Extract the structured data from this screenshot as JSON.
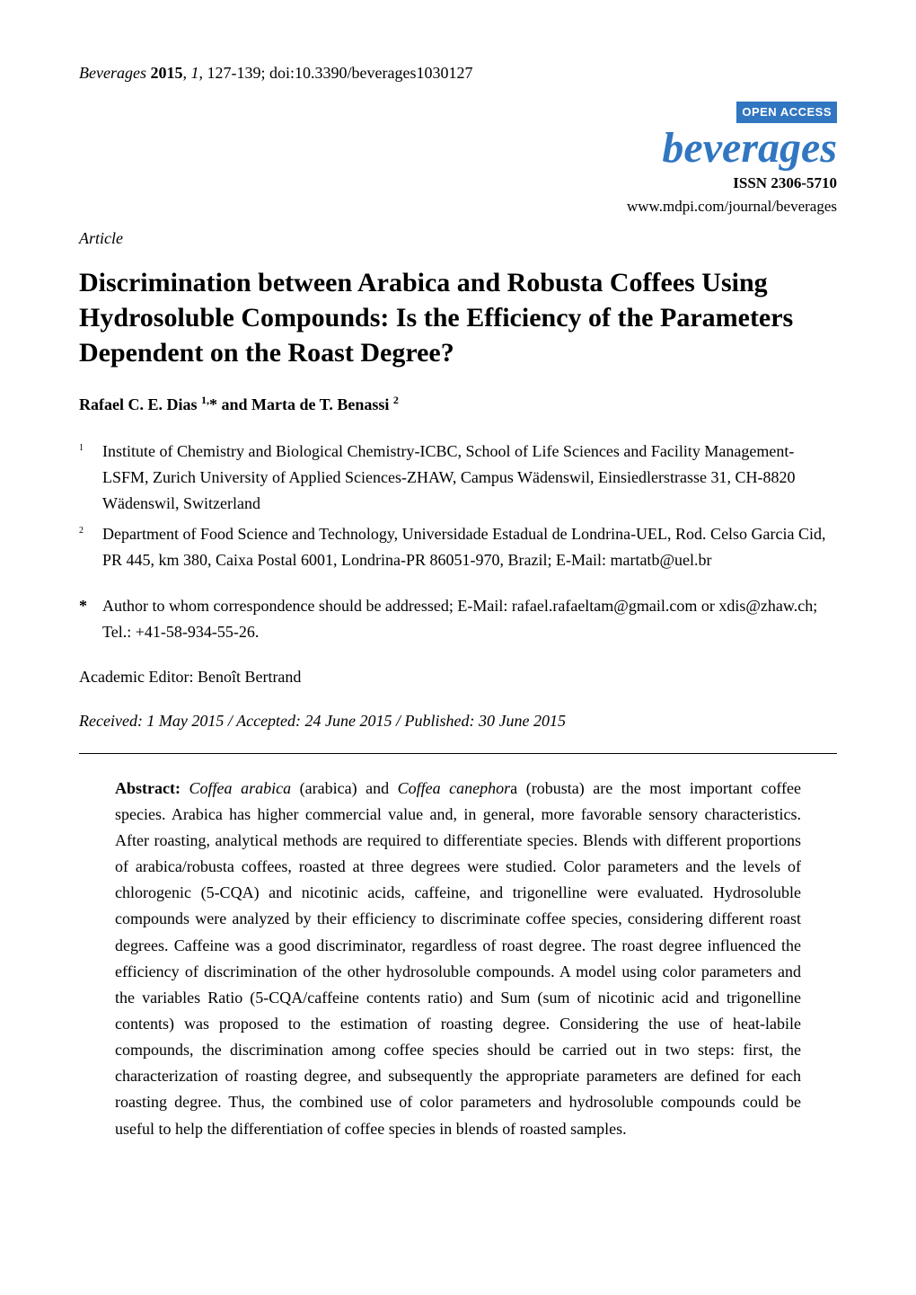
{
  "header": {
    "journal_name": "Beverages",
    "year": "2015",
    "volume": "1",
    "pages": "127-139",
    "doi": "doi:10.3390/beverages1030127"
  },
  "branding": {
    "open_access_label": "OPEN ACCESS",
    "journal_logo": "beverages",
    "issn_label": "ISSN 2306-5710",
    "url": "www.mdpi.com/journal/beverages"
  },
  "article_type": "Article",
  "title": "Discrimination between Arabica and Robusta Coffees Using Hydrosoluble Compounds: Is the Efficiency of the Parameters Dependent on the Roast Degree?",
  "authors": {
    "author1_name": "Rafael C. E. Dias",
    "author1_sup": "1,",
    "author1_mark": "*",
    "joiner": " and ",
    "author2_name": "Marta de T. Benassi",
    "author2_sup": "2"
  },
  "affiliations": {
    "affil1_num": "1",
    "affil1_text": "Institute of Chemistry and Biological Chemistry-ICBC, School of Life Sciences and Facility Management-LSFM, Zurich University of Applied Sciences-ZHAW, Campus Wädenswil, Einsiedlerstrasse 31, CH-8820 Wädenswil, Switzerland",
    "affil2_num": "2",
    "affil2_text": "Department of Food Science and Technology, Universidade Estadual de Londrina-UEL, Rod. Celso Garcia Cid, PR 445, km 380, Caixa Postal 6001, Londrina-PR 86051-970, Brazil; E-Mail: martatb@uel.br"
  },
  "correspondence": {
    "mark": "*",
    "text": "Author to whom correspondence should be addressed; E-Mail: rafael.rafaeltam@gmail.com or xdis@zhaw.ch; Tel.: +41-58-934-55-26."
  },
  "editor": {
    "label": "Academic Editor: ",
    "name": "Benoît Bertrand"
  },
  "dates": "Received: 1 May 2015 / Accepted: 24 June 2015 / Published: 30 June 2015",
  "abstract": {
    "label": "Abstract:",
    "sp1": " ",
    "i1": "Coffea arabica",
    "t1": " (arabica) and ",
    "i2": "Coffea canephor",
    "t2": "a (robusta) are the most important coffee species. Arabica has higher commercial value and, in general, more favorable sensory characteristics. After roasting, analytical methods are required to differentiate species. Blends with different proportions of arabica/robusta coffees, roasted at three degrees were studied. Color parameters and the levels of chlorogenic (5-CQA) and nicotinic acids, caffeine, and trigonelline were evaluated. Hydrosoluble compounds were analyzed by their efficiency to discriminate coffee species, considering different roast degrees. Caffeine was a good discriminator, regardless of roast degree. The roast degree influenced the efficiency of discrimination of the other hydrosoluble compounds. A model using color parameters and the variables Ratio (5-CQA/caffeine contents ratio) and Sum (sum of nicotinic acid and trigonelline contents) was proposed to the estimation of roasting degree. Considering the use of heat-labile compounds, the discrimination among coffee species should be carried out in two steps: first, the characterization of roasting degree, and subsequently the appropriate parameters are defined for each roasting degree. Thus, the combined use of color parameters and hydrosoluble compounds could be useful to help the differentiation of coffee species in blends of roasted samples."
  },
  "colors": {
    "accent_blue": "#3176c1",
    "text": "#000000",
    "background": "#ffffff"
  },
  "typography": {
    "body_font": "Times New Roman",
    "body_size_pt": 12,
    "title_size_pt": 18,
    "logo_size_pt": 36
  }
}
